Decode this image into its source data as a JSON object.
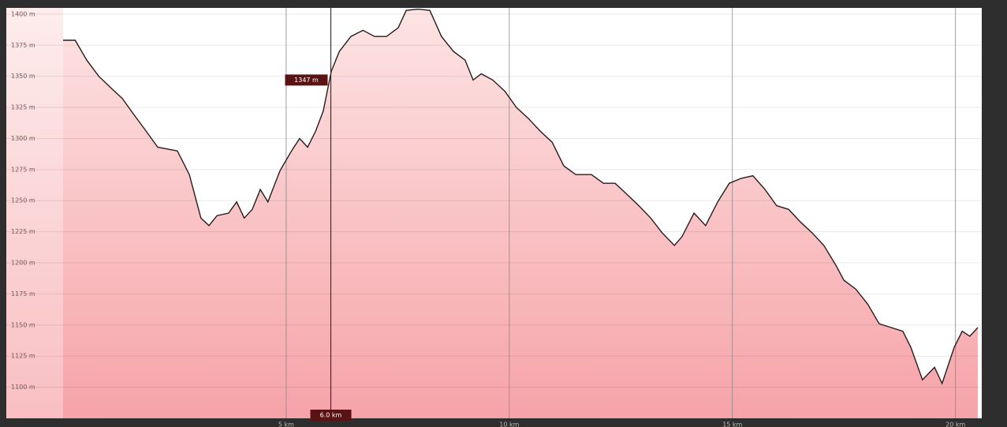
{
  "chart_data": {
    "type": "area",
    "x": [
      0,
      0.27,
      0.53,
      0.8,
      1.06,
      1.33,
      1.59,
      1.86,
      2.12,
      2.56,
      2.83,
      3.09,
      3.27,
      3.45,
      3.71,
      3.89,
      4.06,
      4.24,
      4.42,
      4.59,
      4.86,
      5.12,
      5.3,
      5.48,
      5.66,
      5.83,
      6.01,
      6.19,
      6.45,
      6.72,
      6.98,
      7.25,
      7.51,
      7.69,
      7.95,
      8.22,
      8.48,
      8.75,
      9.01,
      9.19,
      9.37,
      9.63,
      9.9,
      10.16,
      10.43,
      10.69,
      10.96,
      11.22,
      11.49,
      11.84,
      12.11,
      12.37,
      12.64,
      12.9,
      13.17,
      13.43,
      13.7,
      13.87,
      14.14,
      14.4,
      14.67,
      14.93,
      15.2,
      15.46,
      15.73,
      15.99,
      16.26,
      16.52,
      16.79,
      17.05,
      17.32,
      17.5,
      17.76,
      18.03,
      18.29,
      18.56,
      18.82,
      19.0,
      19.26,
      19.53,
      19.7,
      19.97,
      20.15,
      20.32,
      20.5
    ],
    "values": [
      1379,
      1379,
      1363,
      1350,
      1341,
      1332,
      1319,
      1306,
      1293,
      1290,
      1271,
      1236,
      1230,
      1238,
      1240,
      1249,
      1236,
      1243,
      1259,
      1249,
      1274,
      1290,
      1300,
      1293,
      1306,
      1322,
      1354,
      1370,
      1382,
      1387,
      1382,
      1382,
      1389,
      1403,
      1404,
      1403,
      1382,
      1370,
      1363,
      1347,
      1352,
      1347,
      1338,
      1325,
      1316,
      1306,
      1297,
      1278,
      1271,
      1271,
      1264,
      1264,
      1255,
      1246,
      1236,
      1224,
      1214,
      1221,
      1240,
      1230,
      1249,
      1264,
      1268,
      1270,
      1259,
      1246,
      1243,
      1233,
      1224,
      1214,
      1198,
      1186,
      1179,
      1167,
      1151,
      1148,
      1145,
      1132,
      1106,
      1116,
      1103,
      1132,
      1145,
      1141,
      1148
    ],
    "color": "#2a1a1a",
    "xlim": [
      0,
      20.5
    ],
    "xticks": [
      {
        "value": 5,
        "label": "5 km"
      },
      {
        "value": 10,
        "label": "10 km"
      },
      {
        "value": 15,
        "label": "15 km"
      },
      {
        "value": 20,
        "label": "20 km"
      }
    ],
    "ylim": [
      1075,
      1405
    ],
    "yticks": [
      {
        "value": 1100,
        "label": "1100 m"
      },
      {
        "value": 1125,
        "label": "1125 m"
      },
      {
        "value": 1150,
        "label": "1150 m"
      },
      {
        "value": 1175,
        "label": "1175 m"
      },
      {
        "value": 1200,
        "label": "1200 m"
      },
      {
        "value": 1225,
        "label": "1225 m"
      },
      {
        "value": 1250,
        "label": "1250 m"
      },
      {
        "value": 1275,
        "label": "1275 m"
      },
      {
        "value": 1300,
        "label": "1300 m"
      },
      {
        "value": 1325,
        "label": "1325 m"
      },
      {
        "value": 1350,
        "label": "1350 m"
      },
      {
        "value": 1375,
        "label": "1375 m"
      },
      {
        "value": 1400,
        "label": "1400 m"
      }
    ],
    "grid": true,
    "cursor": {
      "x": 6.0,
      "x_label": "6.0 km",
      "y": 1347,
      "y_label": "1347 m"
    }
  }
}
